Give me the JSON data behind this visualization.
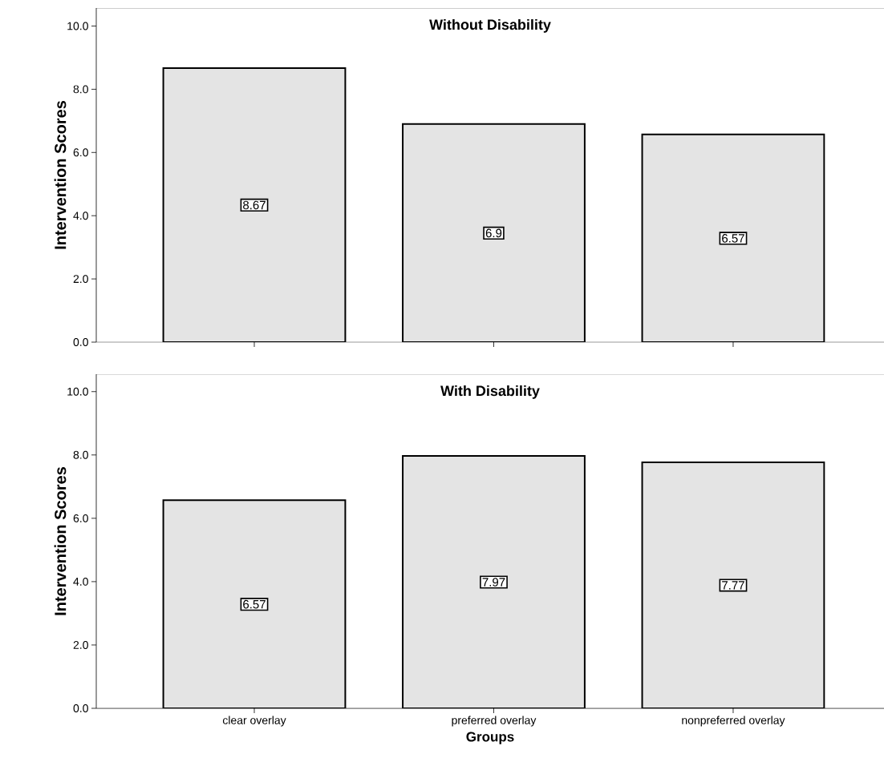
{
  "chart_data": [
    {
      "type": "bar",
      "title": "Without Disability",
      "ylabel": "Intervention Scores",
      "categories": [
        null,
        null,
        null
      ],
      "values": [
        8.67,
        6.9,
        6.57
      ],
      "color": "#e4e4e4",
      "ylim": [
        0,
        10.57
      ],
      "yticks": [
        {
          "value": 0,
          "label": "0.0"
        },
        {
          "value": 2,
          "label": "2.0"
        },
        {
          "value": 4,
          "label": "4.0"
        },
        {
          "value": 6,
          "label": "6.0"
        },
        {
          "value": 8,
          "label": "8.0"
        },
        {
          "value": 10,
          "label": "10.0"
        }
      ],
      "data_labels": true,
      "tick_labels": "y"
    },
    {
      "type": "bar",
      "title": "With Disability",
      "ylabel": "Intervention Scores",
      "xlabel": "Groups",
      "categories": [
        "clear overlay",
        "preferred overlay",
        "nonpreferred overlay"
      ],
      "values": [
        6.57,
        7.97,
        7.77
      ],
      "color": "#e4e4e4",
      "ylim": [
        0,
        10.55
      ],
      "yticks": [
        {
          "value": 0,
          "label": "0.0"
        },
        {
          "value": 2,
          "label": "2.0"
        },
        {
          "value": 4,
          "label": "4.0"
        },
        {
          "value": 6,
          "label": "6.0"
        },
        {
          "value": 8,
          "label": "8.0"
        },
        {
          "value": 10,
          "label": "10.0"
        }
      ],
      "data_labels": true
    }
  ]
}
